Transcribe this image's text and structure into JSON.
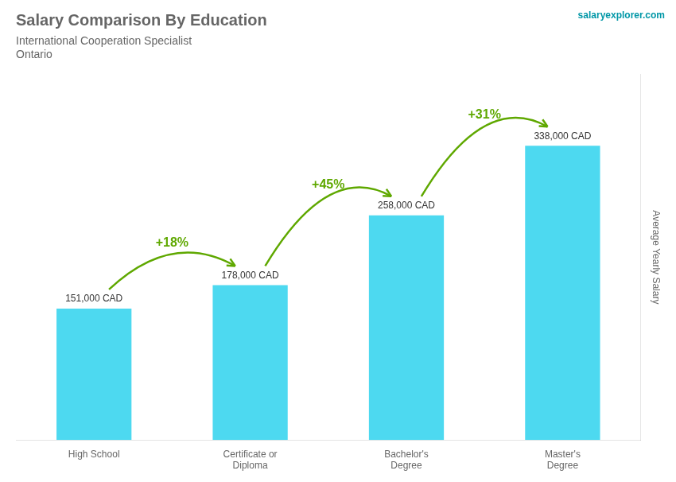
{
  "chart_data": {
    "type": "bar",
    "title": "Salary Comparison By Education",
    "subtitle": "International Cooperation Specialist",
    "ylabel": "Average Yearly Salary",
    "categories": [
      "High School",
      "Certificate or\nDiploma",
      "Bachelor's\nDegree",
      "Master's\nDegree"
    ],
    "values": [
      151000,
      178000,
      258000,
      338000
    ],
    "value_labels": [
      "151,000 CAD",
      "178,000 CAD",
      "258,000 CAD",
      "338,000 CAD"
    ],
    "data_labels": true,
    "color": "#4dd9f0",
    "ylim": [
      0,
      420000
    ],
    "grid": false,
    "tick_labels": "x",
    "annotations": [
      "+18%",
      "+45%",
      "+31%",
      "Ontario",
      "salaryexplorer.com"
    ]
  }
}
